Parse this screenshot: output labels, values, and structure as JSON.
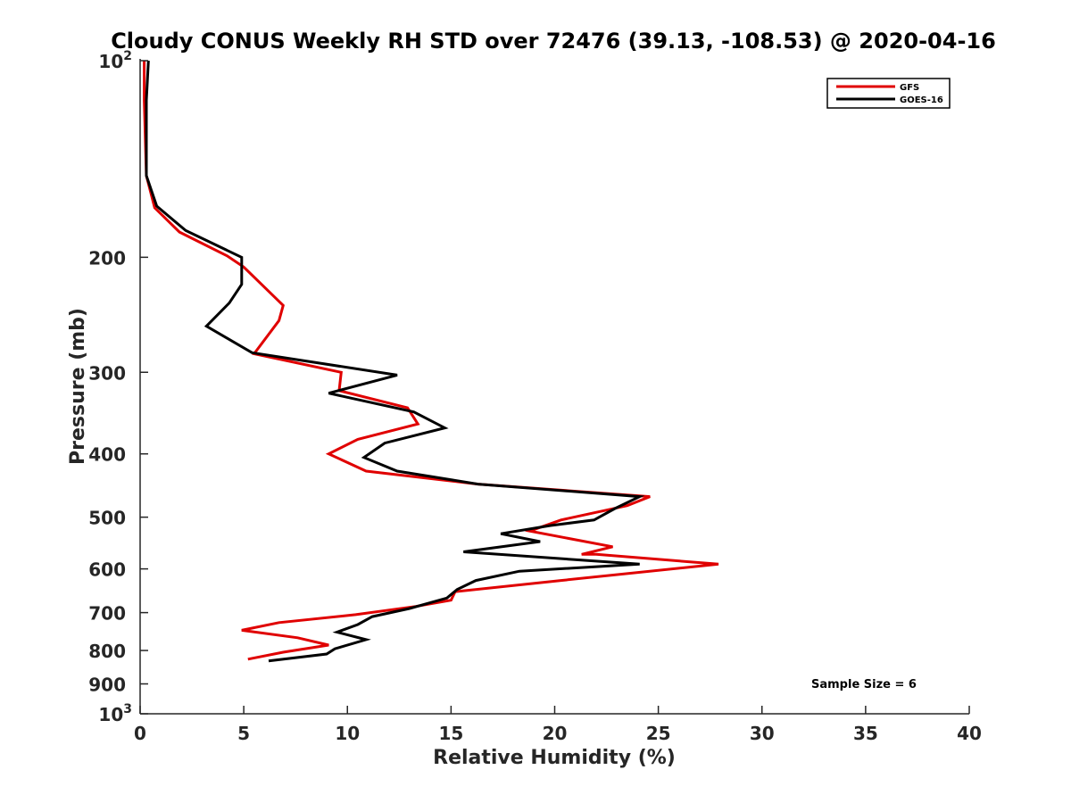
{
  "chart_data": {
    "type": "line",
    "title": "Cloudy CONUS Weekly RH STD over 72476 (39.13, -108.53) @ 2020-04-16",
    "xlabel": "Relative Humidity (%)",
    "ylabel": "Pressure (mb)",
    "xlim": [
      0,
      40
    ],
    "ylim": [
      100,
      1000
    ],
    "y_scale": "log",
    "y_reversed": true,
    "x_ticks": [
      "0",
      "5",
      "10",
      "15",
      "20",
      "25",
      "30",
      "35",
      "40"
    ],
    "y_ticks": [
      {
        "value": 100,
        "label": "10",
        "sup": "2"
      },
      {
        "value": 200,
        "label": "200",
        "sup": ""
      },
      {
        "value": 300,
        "label": "300",
        "sup": ""
      },
      {
        "value": 400,
        "label": "400",
        "sup": ""
      },
      {
        "value": 500,
        "label": "500",
        "sup": ""
      },
      {
        "value": 600,
        "label": "600",
        "sup": ""
      },
      {
        "value": 700,
        "label": "700",
        "sup": ""
      },
      {
        "value": 800,
        "label": "800",
        "sup": ""
      },
      {
        "value": 900,
        "label": "900",
        "sup": ""
      },
      {
        "value": 1000,
        "label": "10",
        "sup": "3"
      }
    ],
    "legend_position": "top-right",
    "annotation": "Sample Size = 6",
    "series": [
      {
        "name": "GFS",
        "color": "#e00000",
        "points": [
          [
            0.2,
            100
          ],
          [
            0.2,
            115
          ],
          [
            0.3,
            150
          ],
          [
            0.7,
            168
          ],
          [
            1.9,
            183
          ],
          [
            4.2,
            199
          ],
          [
            5.0,
            207
          ],
          [
            6.9,
            237
          ],
          [
            6.7,
            250
          ],
          [
            5.5,
            281
          ],
          [
            9.7,
            300
          ],
          [
            9.6,
            320
          ],
          [
            12.9,
            340
          ],
          [
            13.4,
            360
          ],
          [
            10.5,
            380
          ],
          [
            9.1,
            400
          ],
          [
            10.9,
            425
          ],
          [
            16.3,
            445
          ],
          [
            24.6,
            465
          ],
          [
            23.5,
            480
          ],
          [
            20.3,
            505
          ],
          [
            18.8,
            525
          ],
          [
            22.8,
            555
          ],
          [
            21.3,
            570
          ],
          [
            22.0,
            570
          ],
          [
            27.9,
            590
          ],
          [
            20.3,
            625
          ],
          [
            15.2,
            650
          ],
          [
            15.0,
            670
          ],
          [
            13.3,
            685
          ],
          [
            10.4,
            705
          ],
          [
            6.7,
            725
          ],
          [
            4.9,
            745
          ],
          [
            7.6,
            765
          ],
          [
            9.1,
            785
          ],
          [
            6.9,
            805
          ],
          [
            5.2,
            825
          ]
        ]
      },
      {
        "name": "GOES-16",
        "color": "#000000",
        "points": [
          [
            0.4,
            100
          ],
          [
            0.3,
            115
          ],
          [
            0.3,
            150
          ],
          [
            0.8,
            167
          ],
          [
            2.2,
            182
          ],
          [
            4.9,
            200
          ],
          [
            4.9,
            220
          ],
          [
            4.3,
            235
          ],
          [
            3.2,
            255
          ],
          [
            5.4,
            280
          ],
          [
            12.4,
            303
          ],
          [
            9.1,
            323
          ],
          [
            13.2,
            345
          ],
          [
            14.7,
            365
          ],
          [
            11.8,
            385
          ],
          [
            10.8,
            405
          ],
          [
            12.4,
            425
          ],
          [
            16.3,
            445
          ],
          [
            24.1,
            465
          ],
          [
            22.9,
            485
          ],
          [
            21.9,
            505
          ],
          [
            19.8,
            515
          ],
          [
            17.4,
            530
          ],
          [
            19.3,
            545
          ],
          [
            15.6,
            565
          ],
          [
            24.1,
            590
          ],
          [
            18.3,
            605
          ],
          [
            16.2,
            625
          ],
          [
            15.3,
            645
          ],
          [
            14.8,
            665
          ],
          [
            13.0,
            690
          ],
          [
            11.2,
            710
          ],
          [
            10.5,
            730
          ],
          [
            9.5,
            750
          ],
          [
            10.9,
            770
          ],
          [
            9.4,
            795
          ],
          [
            9.0,
            810
          ],
          [
            6.2,
            830
          ]
        ]
      }
    ]
  }
}
